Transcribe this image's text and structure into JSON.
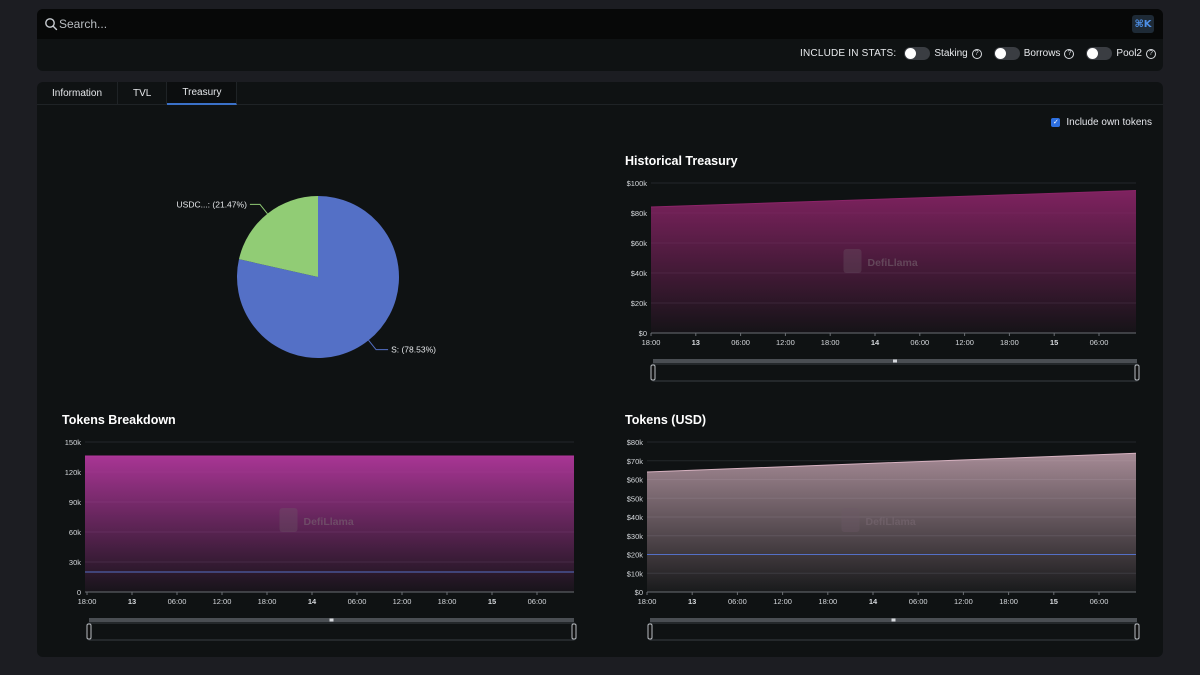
{
  "search": {
    "placeholder": "Search...",
    "shortcut": "⌘K"
  },
  "stats": {
    "label": "INCLUDE IN STATS:",
    "toggles": [
      {
        "label": "Staking",
        "enabled": false
      },
      {
        "label": "Borrows",
        "enabled": false
      },
      {
        "label": "Pool2",
        "enabled": false
      }
    ]
  },
  "tabs": [
    "Information",
    "TVL",
    "Treasury"
  ],
  "active_tab": "Treasury",
  "include_own_tokens": {
    "label": "Include own tokens",
    "checked": true
  },
  "watermark": "DefiLlama",
  "chart_data": [
    {
      "type": "pie",
      "slices": [
        {
          "label": "S: (78.53%)",
          "value": 78.53,
          "color": "#5470c6"
        },
        {
          "label": "USDC...: (21.47%)",
          "value": 21.47,
          "color": "#91cc75"
        }
      ]
    },
    {
      "type": "area",
      "title": "Historical Treasury",
      "yticks": [
        "$0",
        "$20k",
        "$40k",
        "$60k",
        "$80k",
        "$100k"
      ],
      "ylim": [
        0,
        100000
      ],
      "xticks": [
        "18:00",
        "13",
        "06:00",
        "12:00",
        "18:00",
        "14",
        "06:00",
        "12:00",
        "18:00",
        "15",
        "06:00"
      ],
      "series": [
        {
          "name": "Treasury",
          "start": 84000,
          "end": 95000,
          "color": "#8b2468"
        }
      ]
    },
    {
      "type": "area",
      "title": "Tokens Breakdown",
      "yticks": [
        "0",
        "30k",
        "60k",
        "90k",
        "120k",
        "150k"
      ],
      "ylim": [
        0,
        150000
      ],
      "xticks": [
        "18:00",
        "13",
        "06:00",
        "12:00",
        "18:00",
        "14",
        "06:00",
        "12:00",
        "18:00",
        "15",
        "06:00"
      ],
      "series": [
        {
          "name": "S",
          "start": 136000,
          "end": 136000,
          "color": "#b0379b"
        },
        {
          "name": "USDC",
          "start": 20000,
          "end": 20000,
          "color": "#5470c6"
        }
      ]
    },
    {
      "type": "area",
      "title": "Tokens (USD)",
      "yticks": [
        "$0",
        "$10k",
        "$20k",
        "$30k",
        "$40k",
        "$50k",
        "$60k",
        "$70k",
        "$80k"
      ],
      "ylim": [
        0,
        80000
      ],
      "xticks": [
        "18:00",
        "13",
        "06:00",
        "12:00",
        "18:00",
        "14",
        "06:00",
        "12:00",
        "18:00",
        "15",
        "06:00"
      ],
      "series": [
        {
          "name": "S",
          "start": 64000,
          "end": 74000,
          "color": "#d7b2c0"
        },
        {
          "name": "USDC",
          "start": 20000,
          "end": 20000,
          "color": "#5470c6"
        }
      ]
    }
  ]
}
